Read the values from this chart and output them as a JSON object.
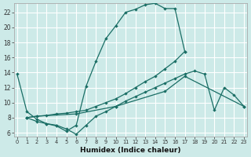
{
  "xlabel": "Humidex (Indice chaleur)",
  "bg_color": "#cdeae8",
  "grid_color": "#ffffff",
  "line_color": "#1a6e65",
  "xlim": [
    -0.3,
    23.3
  ],
  "ylim": [
    5.5,
    23.2
  ],
  "yticks": [
    6,
    8,
    10,
    12,
    14,
    16,
    18,
    20,
    22
  ],
  "xticks": [
    0,
    1,
    2,
    3,
    4,
    5,
    6,
    7,
    8,
    9,
    10,
    11,
    12,
    13,
    14,
    15,
    16,
    17,
    18,
    19,
    20,
    21,
    22,
    23
  ],
  "line1_x": [
    0,
    1,
    2,
    3,
    4,
    5,
    6,
    7,
    8,
    9,
    10,
    11,
    12,
    13,
    14,
    15,
    16,
    17
  ],
  "line1_y": [
    13.8,
    8.8,
    7.8,
    7.2,
    6.9,
    6.2,
    7.0,
    12.2,
    15.5,
    18.5,
    20.2,
    22.0,
    22.4,
    23.0,
    23.2,
    22.5,
    22.5,
    16.8
  ],
  "line2_x": [
    1,
    2,
    3,
    4,
    5,
    6,
    7,
    8,
    9,
    10,
    11,
    12,
    13,
    14,
    15,
    16,
    17
  ],
  "line2_y": [
    8.0,
    8.2,
    8.3,
    8.5,
    8.6,
    8.8,
    9.0,
    9.5,
    10.0,
    10.5,
    11.2,
    12.0,
    12.8,
    13.5,
    14.5,
    15.5,
    16.8
  ],
  "line3_x": [
    1,
    2,
    3,
    4,
    5,
    6,
    7,
    8,
    9,
    10,
    11,
    12,
    13,
    14,
    15,
    16,
    17,
    18,
    19,
    20,
    21,
    22,
    23
  ],
  "line3_y": [
    8.0,
    7.5,
    7.2,
    7.0,
    6.5,
    5.8,
    7.0,
    8.2,
    8.8,
    9.5,
    10.2,
    10.8,
    11.4,
    12.0,
    12.6,
    13.2,
    13.8,
    14.2,
    13.8,
    9.0,
    12.0,
    11.0,
    9.5
  ],
  "line4_x": [
    1,
    2,
    6,
    10,
    15,
    17,
    23
  ],
  "line4_y": [
    8.0,
    8.2,
    8.5,
    9.5,
    11.5,
    13.5,
    9.5
  ]
}
